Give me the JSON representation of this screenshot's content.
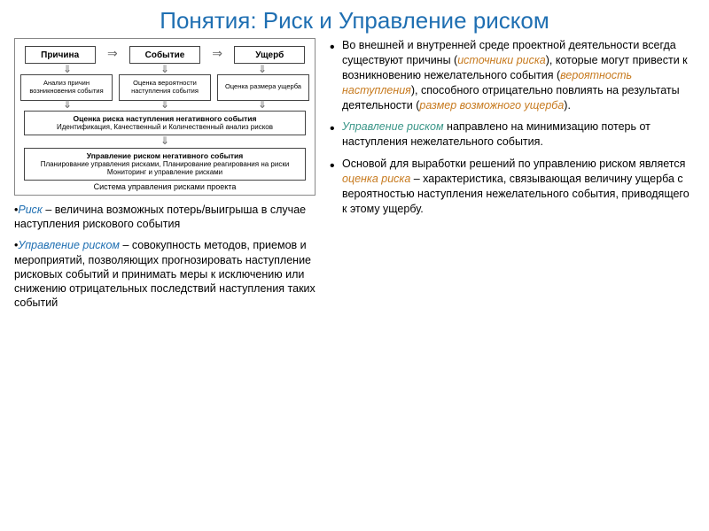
{
  "title": "Понятия: Риск и Управление риском",
  "diagram": {
    "top_nodes": [
      "Причина",
      "Событие",
      "Ущерб"
    ],
    "mid_nodes": [
      "Анализ причин возникновения события",
      "Оценка вероятности наступления события",
      "Оценка размера ущерба"
    ],
    "wide1_title": "Оценка риска наступления негативного события",
    "wide1_sub": "Идентификация, Качественный и Количественный анализ рисков",
    "wide2_title": "Управление риском негативного события",
    "wide2_sub": "Планирование управления рисками, Планирование реагирования на риски Мониторинг и управление рисками",
    "system_label": "Система управления рисками проекта"
  },
  "def_risk_term": "Риск",
  "def_risk_body": " – величина возможных потерь/выигрыша в случае наступления рискового события",
  "def_mgmt_term": "Управление риском",
  "def_mgmt_body": " – совокупность методов, приемов и мероприятий, позволяющих прогнозировать наступление рисковых событий и принимать меры к исключению или снижению отрицательных последствий наступления таких событий",
  "bullets": {
    "b1_pre": "Во внешней и внутренней среде проектной деятельности всегда существуют причины (",
    "b1_h1": "источники риска",
    "b1_mid1": "), которые могут привести к возникновению нежелательного события (",
    "b1_h2": "вероятность наступления",
    "b1_mid2": "), способного отрицательно повлиять на результаты деятельности (",
    "b1_h3": "размер возможного ущерба",
    "b1_post": ").",
    "b2_h": "Управление риском",
    "b2_body": " направлено на минимизацию потерь от наступления нежелательного события.",
    "b3_pre": " Основой для выработки решений по управлению риском является ",
    "b3_h": "оценка риска",
    "b3_post": " – характеристика, связывающая величину ущерба с вероятностью наступления нежелательного события, приводящего к этому ущербу."
  },
  "colors": {
    "title": "#1f6fb2",
    "term": "#1f6fb2",
    "orange": "#c77a1e",
    "teal": "#3a9688",
    "border": "#444444"
  },
  "fonts": {
    "title_pt": 26,
    "body_pt": 12.5,
    "diagram_small_pt": 8
  }
}
